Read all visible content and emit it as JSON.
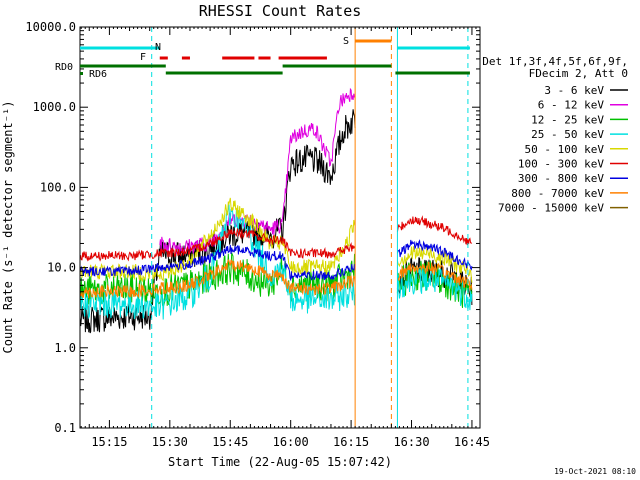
{
  "chart_data": {
    "type": "line",
    "title": "RHESSI Count Rates",
    "xlabel": "Start Time (22-Aug-05 15:07:42)",
    "ylabel": "Count Rate (s⁻¹ detector segment⁻¹)",
    "yscale": "log",
    "ylim": [
      0.1,
      10000
    ],
    "xlim": [
      "15:07:42",
      "16:47:00"
    ],
    "y_ticks": [
      "0.1",
      "1.0",
      "10.0",
      "100.0",
      "1000.0",
      "10000.0"
    ],
    "x_ticks": [
      "15:15",
      "15:30",
      "15:45",
      "16:00",
      "16:15",
      "16:30",
      "16:45"
    ],
    "timestamp": "19-Oct-2021 08:10",
    "legend": {
      "header": [
        "Det 1f,3f,4f,5f,6f,9f,",
        "FDecim 2, Att 0"
      ],
      "entries": [
        {
          "label": "3 - 6 keV",
          "color": "#000000"
        },
        {
          "label": "6 - 12 keV",
          "color": "#e000e0"
        },
        {
          "label": "12 - 25 keV",
          "color": "#00c000"
        },
        {
          "label": "25 - 50 keV",
          "color": "#00e0e0"
        },
        {
          "label": "50 - 100 keV",
          "color": "#d8d800"
        },
        {
          "label": "100 - 300 keV",
          "color": "#e00000"
        },
        {
          "label": "300 - 800 keV",
          "color": "#0000e0"
        },
        {
          "label": "800 - 7000 keV",
          "color": "#ff8000"
        },
        {
          "label": "7000 - 15000 keV",
          "color": "#806000"
        }
      ]
    },
    "flags": {
      "N": {
        "label": "N",
        "color": "#00e0e0",
        "intervals": [
          [
            "15:07:42",
            "15:27:30"
          ],
          [
            "16:26:30",
            "16:44:30"
          ]
        ]
      },
      "F": {
        "label": "F",
        "color": "#e00000",
        "intervals": [
          [
            "15:27:30",
            "15:29:30"
          ],
          [
            "15:33:00",
            "15:35:00"
          ],
          [
            "15:43:00",
            "15:51:00"
          ],
          [
            "15:52:00",
            "15:55:00"
          ],
          [
            "15:57:00",
            "16:09:00"
          ]
        ]
      },
      "S": {
        "label": "S",
        "color": "#ff8000",
        "intervals": [
          [
            "16:16:00",
            "16:25:00"
          ]
        ]
      },
      "RD0": {
        "label": "RD0",
        "color": "#007000",
        "intervals": [
          [
            "15:07:42",
            "15:29:00"
          ],
          [
            "15:58:00",
            "16:25:00"
          ]
        ]
      },
      "RD6": {
        "label": "RD6",
        "color": "#007000",
        "intervals": [
          [
            "15:29:00",
            "15:58:00"
          ],
          [
            "16:26:00",
            "16:44:30"
          ]
        ]
      }
    },
    "vertical_markers": [
      {
        "time": "15:07:42",
        "color": "#00e0e0",
        "style": "solid"
      },
      {
        "time": "15:25:30",
        "color": "#00e0e0",
        "style": "dashed"
      },
      {
        "time": "16:16:00",
        "color": "#ff8000",
        "style": "solid"
      },
      {
        "time": "16:25:00",
        "color": "#ff8000",
        "style": "dashed"
      },
      {
        "time": "16:26:30",
        "color": "#00e0e0",
        "style": "solid"
      },
      {
        "time": "16:44:00",
        "color": "#00e0e0",
        "style": "dashed"
      }
    ],
    "series": [
      {
        "name": "3 - 6 keV",
        "color": "#000000",
        "noise": 0.18,
        "segments": [
          {
            "t": [
              "15:07:42",
              "15:20:00",
              "15:25:00",
              "15:27:30",
              "15:35:00",
              "15:40:00",
              "15:45:00",
              "15:50:00",
              "15:55:00",
              "15:58:00",
              "16:00:00",
              "16:05:00",
              "16:08:00",
              "16:10:00",
              "16:13:00",
              "16:16:00"
            ],
            "v": [
              2.2,
              2.5,
              2.5,
              15,
              14,
              18,
              26,
              28,
              25,
              30,
              200,
              230,
              180,
              140,
              500,
              750
            ]
          },
          {
            "t": [
              "16:26:30",
              "16:30:00",
              "16:35:00",
              "16:40:00",
              "16:45:00"
            ],
            "v": [
              7,
              9,
              9,
              8,
              5
            ]
          }
        ]
      },
      {
        "name": "6 - 12 keV",
        "color": "#e000e0",
        "noise": 0.1,
        "segments": [
          {
            "t": [
              "15:27:30",
              "15:33:00",
              "15:40:00",
              "15:45:00",
              "15:50:00",
              "15:55:00",
              "15:58:00",
              "16:00:00",
              "16:03:00",
              "16:06:00",
              "16:08:00",
              "16:10:00",
              "16:12:00",
              "16:14:00",
              "16:16:00"
            ],
            "v": [
              20,
              18,
              20,
              40,
              40,
              30,
              35,
              400,
              500,
              550,
              330,
              200,
              1100,
              1400,
              1600
            ]
          }
        ]
      },
      {
        "name": "12 - 25 keV",
        "color": "#00c000",
        "noise": 0.2,
        "segments": [
          {
            "t": [
              "15:07:42",
              "15:20:00",
              "15:27:30",
              "15:35:00",
              "15:45:00",
              "15:55:00",
              "15:58:00",
              "16:00:00",
              "16:10:00",
              "16:14:00",
              "16:16:00"
            ],
            "v": [
              5,
              5.5,
              5,
              6,
              10,
              6,
              10,
              6,
              6,
              8,
              10
            ]
          },
          {
            "t": [
              "16:26:30",
              "16:30:00",
              "16:35:00",
              "16:40:00",
              "16:45:00"
            ],
            "v": [
              6,
              8,
              8,
              6,
              4
            ]
          }
        ]
      },
      {
        "name": "25 - 50 keV",
        "color": "#00e0e0",
        "noise": 0.18,
        "segments": [
          {
            "t": [
              "15:07:42",
              "15:20:00",
              "15:27:30",
              "15:35:00",
              "15:40:00",
              "15:45:00",
              "15:50:00",
              "15:55:00",
              "15:58:00",
              "16:00:00",
              "16:10:00",
              "16:16:00"
            ],
            "v": [
              3.5,
              3.5,
              3.2,
              4.5,
              8,
              50,
              25,
              8,
              10,
              4,
              4,
              5
            ]
          },
          {
            "t": [
              "16:26:30",
              "16:30:00",
              "16:35:00",
              "16:40:00",
              "16:45:00"
            ],
            "v": [
              6,
              7,
              7,
              6,
              4
            ]
          }
        ]
      },
      {
        "name": "50 - 100 keV",
        "color": "#d8d800",
        "noise": 0.1,
        "segments": [
          {
            "t": [
              "15:07:42",
              "15:20:00",
              "15:27:30",
              "15:35:00",
              "15:40:00",
              "15:45:00",
              "15:50:00",
              "15:55:00",
              "15:58:00",
              "16:00:00",
              "16:10:00",
              "16:14:00",
              "16:16:00"
            ],
            "v": [
              9,
              9,
              8,
              12,
              25,
              60,
              40,
              20,
              20,
              10,
              10,
              20,
              40
            ]
          },
          {
            "t": [
              "16:26:30",
              "16:30:00",
              "16:35:00",
              "16:40:00",
              "16:45:00"
            ],
            "v": [
              12,
              15,
              15,
              12,
              8
            ]
          }
        ]
      },
      {
        "name": "100 - 300 keV",
        "color": "#e00000",
        "noise": 0.06,
        "segments": [
          {
            "t": [
              "15:07:42",
              "15:20:00",
              "15:27:30",
              "15:35:00",
              "15:40:00",
              "15:45:00",
              "15:50:00",
              "15:55:00",
              "15:58:00",
              "16:00:00",
              "16:10:00",
              "16:16:00"
            ],
            "v": [
              14,
              14,
              15,
              16,
              20,
              28,
              26,
              22,
              22,
              15,
              15,
              18
            ]
          },
          {
            "t": [
              "16:26:30",
              "16:30:00",
              "16:35:00",
              "16:40:00",
              "16:45:00"
            ],
            "v": [
              30,
              40,
              35,
              28,
              20
            ]
          }
        ]
      },
      {
        "name": "300 - 800 keV",
        "color": "#0000e0",
        "noise": 0.06,
        "segments": [
          {
            "t": [
              "15:07:42",
              "15:20:00",
              "15:27:30",
              "15:35:00",
              "15:40:00",
              "15:45:00",
              "15:50:00",
              "15:55:00",
              "15:58:00",
              "16:00:00",
              "16:10:00",
              "16:16:00"
            ],
            "v": [
              9,
              9,
              10,
              11,
              13,
              17,
              16,
              14,
              14,
              8,
              8,
              10
            ]
          },
          {
            "t": [
              "16:26:30",
              "16:30:00",
              "16:35:00",
              "16:40:00",
              "16:45:00"
            ],
            "v": [
              14,
              20,
              18,
              14,
              10
            ]
          }
        ]
      },
      {
        "name": "800 - 7000 keV",
        "color": "#ff8000",
        "noise": 0.08,
        "segments": [
          {
            "t": [
              "15:07:42",
              "15:20:00",
              "15:27:30",
              "15:35:00",
              "15:40:00",
              "15:45:00",
              "15:50:00",
              "15:55:00",
              "15:58:00",
              "16:00:00",
              "16:10:00",
              "16:16:00"
            ],
            "v": [
              5,
              5,
              5.5,
              6,
              8,
              11,
              10,
              8,
              8,
              5.5,
              5.5,
              7
            ]
          },
          {
            "t": [
              "16:26:30",
              "16:30:00",
              "16:35:00",
              "16:40:00",
              "16:45:00"
            ],
            "v": [
              8,
              10,
              10,
              8,
              6
            ]
          }
        ]
      }
    ]
  }
}
